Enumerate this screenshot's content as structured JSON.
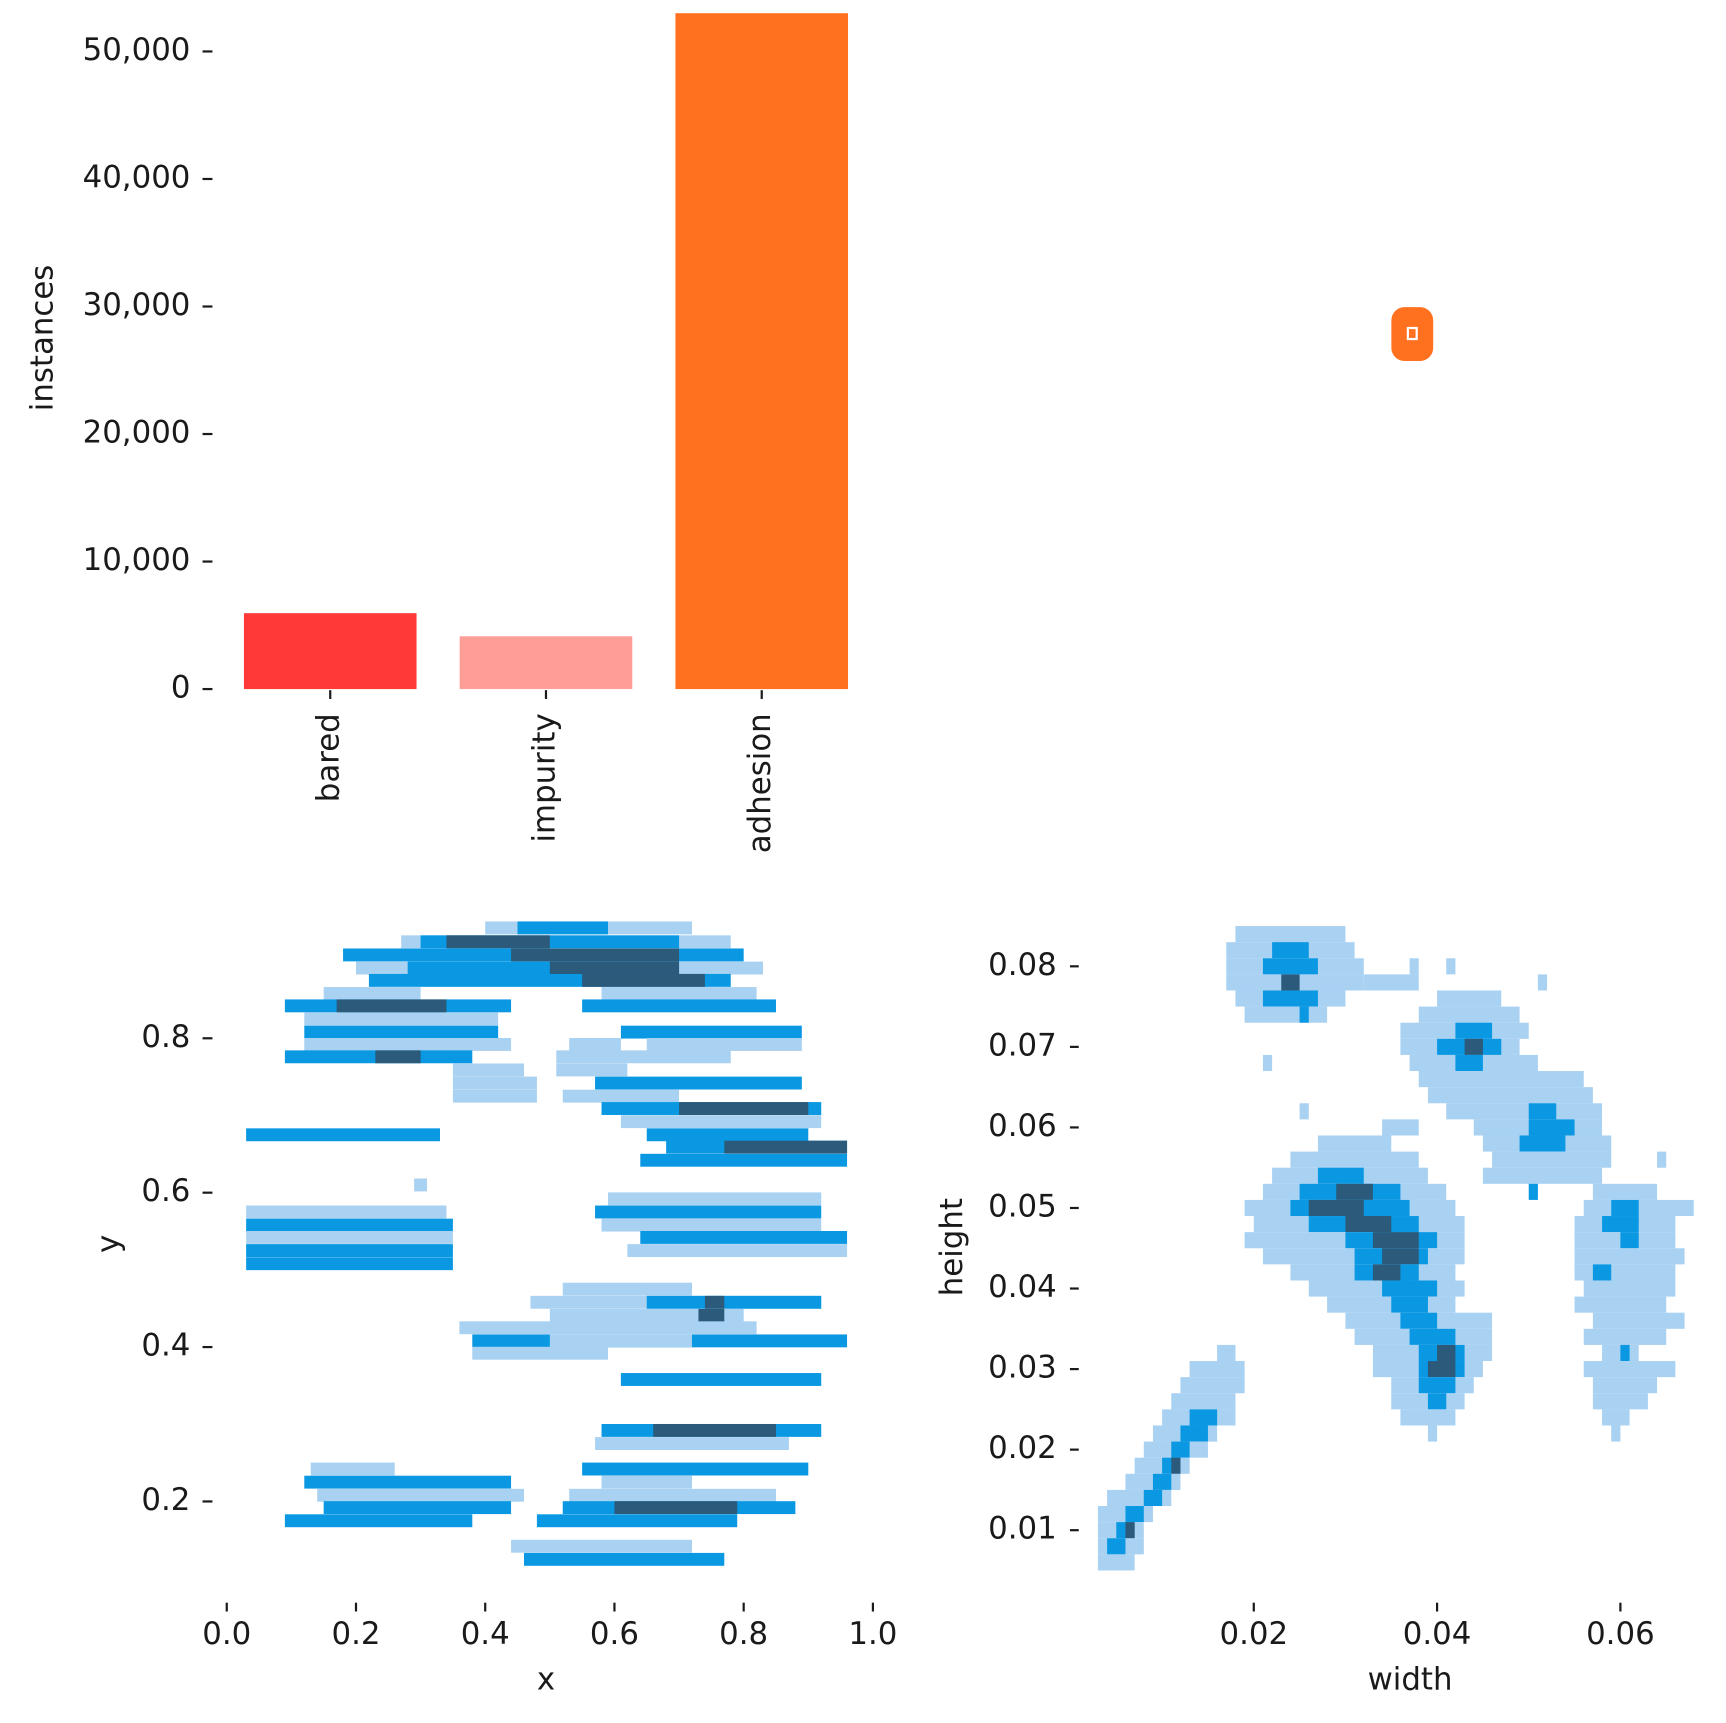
{
  "chart_data": [
    {
      "type": "bar",
      "ylabel": "instances",
      "categories": [
        "bared",
        "impurity",
        "adhesion"
      ],
      "values": [
        5950,
        4140,
        53000
      ],
      "colors": [
        "#ff3838",
        "#ff9d97",
        "#ff701f"
      ],
      "ylim": [
        0,
        53000
      ],
      "yticks": [
        0,
        {
          "value": 10000,
          "label": "10,000"
        },
        {
          "value": 20000,
          "label": "20,000"
        },
        {
          "value": 30000,
          "label": "30,000"
        },
        {
          "value": 40000,
          "label": "40,000"
        },
        {
          "value": 50000,
          "label": "50,000"
        }
      ]
    },
    {
      "type": "histogram2d",
      "xlabel": "x",
      "ylabel": "y",
      "xlim": [
        0,
        1
      ],
      "ylim": [
        0.07,
        1.0
      ],
      "xticks": [
        {
          "value": 0,
          "label": "0.0"
        },
        0.2,
        0.4,
        0.6,
        0.8,
        {
          "value": 1,
          "label": "1.0"
        }
      ],
      "yticks": [
        0.2,
        0.4,
        0.6,
        0.8
      ],
      "bin_height": 0.0167,
      "colors": [
        "#a8d1f2",
        "#0a98e3",
        "#2b5a7a"
      ],
      "cells": [
        [
          0.4,
          0.72,
          0.943,
          1
        ],
        [
          0.45,
          0.59,
          0.943,
          2
        ],
        [
          0.27,
          0.78,
          0.925,
          1
        ],
        [
          0.3,
          0.7,
          0.925,
          2
        ],
        [
          0.34,
          0.5,
          0.925,
          3
        ],
        [
          0.18,
          0.8,
          0.908,
          2
        ],
        [
          0.44,
          0.7,
          0.908,
          3
        ],
        [
          0.2,
          0.83,
          0.891,
          1
        ],
        [
          0.28,
          0.7,
          0.891,
          2
        ],
        [
          0.5,
          0.7,
          0.891,
          3
        ],
        [
          0.22,
          0.78,
          0.875,
          2
        ],
        [
          0.55,
          0.74,
          0.875,
          3
        ],
        [
          0.15,
          0.3,
          0.858,
          1
        ],
        [
          0.58,
          0.82,
          0.858,
          1
        ],
        [
          0.09,
          0.44,
          0.842,
          2
        ],
        [
          0.17,
          0.34,
          0.842,
          3
        ],
        [
          0.55,
          0.85,
          0.842,
          2
        ],
        [
          0.12,
          0.42,
          0.825,
          1
        ],
        [
          0.12,
          0.42,
          0.808,
          2
        ],
        [
          0.61,
          0.89,
          0.808,
          2
        ],
        [
          0.12,
          0.44,
          0.792,
          1
        ],
        [
          0.53,
          0.61,
          0.792,
          1
        ],
        [
          0.65,
          0.89,
          0.792,
          1
        ],
        [
          0.09,
          0.38,
          0.776,
          2
        ],
        [
          0.23,
          0.3,
          0.776,
          3
        ],
        [
          0.51,
          0.78,
          0.776,
          1
        ],
        [
          0.35,
          0.46,
          0.759,
          1
        ],
        [
          0.51,
          0.62,
          0.759,
          1
        ],
        [
          0.35,
          0.48,
          0.742,
          1
        ],
        [
          0.57,
          0.89,
          0.742,
          2
        ],
        [
          0.35,
          0.48,
          0.725,
          1
        ],
        [
          0.52,
          0.7,
          0.725,
          1
        ],
        [
          0.58,
          0.92,
          0.709,
          2
        ],
        [
          0.7,
          0.9,
          0.709,
          3
        ],
        [
          0.61,
          0.92,
          0.692,
          1
        ],
        [
          0.03,
          0.33,
          0.675,
          2
        ],
        [
          0.65,
          0.9,
          0.675,
          2
        ],
        [
          0.68,
          0.96,
          0.659,
          2
        ],
        [
          0.77,
          0.96,
          0.659,
          3
        ],
        [
          0.64,
          0.96,
          0.642,
          2
        ],
        [
          0.29,
          0.31,
          0.61,
          1
        ],
        [
          0.59,
          0.92,
          0.592,
          1
        ],
        [
          0.57,
          0.92,
          0.575,
          2
        ],
        [
          0.03,
          0.34,
          0.575,
          1
        ],
        [
          0.03,
          0.35,
          0.558,
          2
        ],
        [
          0.58,
          0.92,
          0.558,
          1
        ],
        [
          0.03,
          0.35,
          0.542,
          1
        ],
        [
          0.64,
          0.96,
          0.542,
          2
        ],
        [
          0.03,
          0.35,
          0.525,
          2
        ],
        [
          0.62,
          0.96,
          0.525,
          1
        ],
        [
          0.03,
          0.35,
          0.508,
          2
        ],
        [
          0.52,
          0.72,
          0.475,
          1
        ],
        [
          0.47,
          0.92,
          0.458,
          1
        ],
        [
          0.65,
          0.92,
          0.458,
          2
        ],
        [
          0.74,
          0.77,
          0.458,
          3
        ],
        [
          0.5,
          0.8,
          0.441,
          1
        ],
        [
          0.73,
          0.77,
          0.441,
          3
        ],
        [
          0.36,
          0.82,
          0.425,
          1
        ],
        [
          0.38,
          0.96,
          0.408,
          2
        ],
        [
          0.5,
          0.72,
          0.408,
          1
        ],
        [
          0.38,
          0.59,
          0.392,
          1
        ],
        [
          0.61,
          0.92,
          0.358,
          2
        ],
        [
          0.58,
          0.92,
          0.292,
          2
        ],
        [
          0.66,
          0.85,
          0.292,
          3
        ],
        [
          0.57,
          0.87,
          0.275,
          1
        ],
        [
          0.13,
          0.26,
          0.242,
          1
        ],
        [
          0.55,
          0.9,
          0.242,
          2
        ],
        [
          0.12,
          0.44,
          0.225,
          2
        ],
        [
          0.58,
          0.72,
          0.225,
          1
        ],
        [
          0.14,
          0.46,
          0.208,
          1
        ],
        [
          0.53,
          0.85,
          0.208,
          1
        ],
        [
          0.15,
          0.44,
          0.192,
          2
        ],
        [
          0.52,
          0.88,
          0.192,
          2
        ],
        [
          0.6,
          0.79,
          0.192,
          3
        ],
        [
          0.09,
          0.38,
          0.175,
          2
        ],
        [
          0.48,
          0.79,
          0.175,
          2
        ],
        [
          0.44,
          0.72,
          0.142,
          1
        ],
        [
          0.46,
          0.77,
          0.125,
          2
        ]
      ]
    },
    {
      "type": "histogram2d",
      "xlabel": "width",
      "ylabel": "height",
      "xlim": [
        0.001,
        0.069
      ],
      "ylim": [
        0.001,
        0.09
      ],
      "xticks": [
        0.02,
        0.04,
        0.06
      ],
      "yticks": [
        0.01,
        0.02,
        0.03,
        0.04,
        0.05,
        0.06,
        0.07,
        0.08
      ],
      "bin_height": 0.002,
      "colors": [
        "#a8d1f2",
        "#0a98e3",
        "#2b5a7a"
      ],
      "cells": [
        [
          0.018,
          0.03,
          0.084,
          1
        ],
        [
          0.017,
          0.031,
          0.082,
          1
        ],
        [
          0.022,
          0.026,
          0.082,
          2
        ],
        [
          0.017,
          0.032,
          0.08,
          1
        ],
        [
          0.021,
          0.027,
          0.08,
          2
        ],
        [
          0.037,
          0.038,
          0.08,
          1
        ],
        [
          0.041,
          0.042,
          0.08,
          1
        ],
        [
          0.017,
          0.032,
          0.078,
          1
        ],
        [
          0.023,
          0.025,
          0.078,
          3
        ],
        [
          0.032,
          0.038,
          0.078,
          1
        ],
        [
          0.051,
          0.052,
          0.078,
          1
        ],
        [
          0.018,
          0.03,
          0.076,
          1
        ],
        [
          0.021,
          0.027,
          0.076,
          2
        ],
        [
          0.04,
          0.047,
          0.076,
          1
        ],
        [
          0.019,
          0.028,
          0.074,
          1
        ],
        [
          0.025,
          0.026,
          0.074,
          2
        ],
        [
          0.038,
          0.049,
          0.074,
          1
        ],
        [
          0.036,
          0.05,
          0.072,
          1
        ],
        [
          0.042,
          0.046,
          0.072,
          2
        ],
        [
          0.036,
          0.049,
          0.07,
          1
        ],
        [
          0.04,
          0.047,
          0.07,
          2
        ],
        [
          0.043,
          0.045,
          0.07,
          3
        ],
        [
          0.037,
          0.051,
          0.068,
          1
        ],
        [
          0.042,
          0.045,
          0.068,
          2
        ],
        [
          0.021,
          0.022,
          0.068,
          1
        ],
        [
          0.038,
          0.056,
          0.066,
          1
        ],
        [
          0.039,
          0.057,
          0.064,
          1
        ],
        [
          0.041,
          0.058,
          0.062,
          1
        ],
        [
          0.05,
          0.053,
          0.062,
          2
        ],
        [
          0.025,
          0.026,
          0.062,
          1
        ],
        [
          0.034,
          0.038,
          0.06,
          1
        ],
        [
          0.044,
          0.058,
          0.06,
          1
        ],
        [
          0.05,
          0.055,
          0.06,
          2
        ],
        [
          0.027,
          0.035,
          0.058,
          1
        ],
        [
          0.045,
          0.059,
          0.058,
          1
        ],
        [
          0.049,
          0.054,
          0.058,
          2
        ],
        [
          0.024,
          0.038,
          0.056,
          1
        ],
        [
          0.046,
          0.059,
          0.056,
          1
        ],
        [
          0.064,
          0.065,
          0.056,
          1
        ],
        [
          0.022,
          0.039,
          0.054,
          1
        ],
        [
          0.027,
          0.032,
          0.054,
          2
        ],
        [
          0.045,
          0.058,
          0.054,
          1
        ],
        [
          0.021,
          0.041,
          0.052,
          1
        ],
        [
          0.025,
          0.036,
          0.052,
          2
        ],
        [
          0.029,
          0.033,
          0.052,
          3
        ],
        [
          0.05,
          0.051,
          0.052,
          2
        ],
        [
          0.057,
          0.064,
          0.052,
          1
        ],
        [
          0.019,
          0.042,
          0.05,
          1
        ],
        [
          0.024,
          0.037,
          0.05,
          2
        ],
        [
          0.026,
          0.032,
          0.05,
          3
        ],
        [
          0.056,
          0.068,
          0.05,
          1
        ],
        [
          0.059,
          0.062,
          0.05,
          2
        ],
        [
          0.02,
          0.043,
          0.048,
          1
        ],
        [
          0.026,
          0.038,
          0.048,
          2
        ],
        [
          0.03,
          0.035,
          0.048,
          3
        ],
        [
          0.055,
          0.066,
          0.048,
          1
        ],
        [
          0.058,
          0.062,
          0.048,
          2
        ],
        [
          0.019,
          0.043,
          0.046,
          1
        ],
        [
          0.03,
          0.04,
          0.046,
          2
        ],
        [
          0.033,
          0.038,
          0.046,
          3
        ],
        [
          0.055,
          0.066,
          0.046,
          1
        ],
        [
          0.06,
          0.062,
          0.046,
          2
        ],
        [
          0.021,
          0.043,
          0.044,
          1
        ],
        [
          0.031,
          0.039,
          0.044,
          2
        ],
        [
          0.034,
          0.038,
          0.044,
          3
        ],
        [
          0.055,
          0.067,
          0.044,
          1
        ],
        [
          0.024,
          0.042,
          0.042,
          1
        ],
        [
          0.031,
          0.038,
          0.042,
          2
        ],
        [
          0.033,
          0.036,
          0.042,
          3
        ],
        [
          0.055,
          0.066,
          0.042,
          1
        ],
        [
          0.057,
          0.059,
          0.042,
          2
        ],
        [
          0.026,
          0.043,
          0.04,
          1
        ],
        [
          0.034,
          0.04,
          0.04,
          2
        ],
        [
          0.056,
          0.066,
          0.04,
          1
        ],
        [
          0.028,
          0.042,
          0.038,
          1
        ],
        [
          0.035,
          0.039,
          0.038,
          2
        ],
        [
          0.055,
          0.065,
          0.038,
          1
        ],
        [
          0.03,
          0.046,
          0.036,
          1
        ],
        [
          0.036,
          0.04,
          0.036,
          2
        ],
        [
          0.057,
          0.067,
          0.036,
          1
        ],
        [
          0.031,
          0.046,
          0.034,
          1
        ],
        [
          0.037,
          0.042,
          0.034,
          2
        ],
        [
          0.056,
          0.065,
          0.034,
          1
        ],
        [
          0.016,
          0.018,
          0.032,
          1
        ],
        [
          0.033,
          0.046,
          0.032,
          1
        ],
        [
          0.038,
          0.043,
          0.032,
          2
        ],
        [
          0.04,
          0.042,
          0.032,
          3
        ],
        [
          0.058,
          0.062,
          0.032,
          1
        ],
        [
          0.06,
          0.061,
          0.032,
          2
        ],
        [
          0.013,
          0.019,
          0.03,
          1
        ],
        [
          0.033,
          0.045,
          0.03,
          1
        ],
        [
          0.038,
          0.043,
          0.03,
          2
        ],
        [
          0.039,
          0.042,
          0.03,
          3
        ],
        [
          0.056,
          0.066,
          0.03,
          1
        ],
        [
          0.012,
          0.019,
          0.028,
          1
        ],
        [
          0.035,
          0.044,
          0.028,
          1
        ],
        [
          0.038,
          0.042,
          0.028,
          2
        ],
        [
          0.057,
          0.064,
          0.028,
          1
        ],
        [
          0.011,
          0.018,
          0.026,
          1
        ],
        [
          0.035,
          0.043,
          0.026,
          1
        ],
        [
          0.039,
          0.041,
          0.026,
          2
        ],
        [
          0.057,
          0.063,
          0.026,
          1
        ],
        [
          0.01,
          0.018,
          0.024,
          1
        ],
        [
          0.013,
          0.016,
          0.024,
          2
        ],
        [
          0.036,
          0.042,
          0.024,
          1
        ],
        [
          0.058,
          0.061,
          0.024,
          1
        ],
        [
          0.009,
          0.016,
          0.022,
          1
        ],
        [
          0.012,
          0.015,
          0.022,
          2
        ],
        [
          0.039,
          0.04,
          0.022,
          1
        ],
        [
          0.059,
          0.06,
          0.022,
          1
        ],
        [
          0.008,
          0.015,
          0.02,
          1
        ],
        [
          0.011,
          0.013,
          0.02,
          2
        ],
        [
          0.007,
          0.013,
          0.018,
          1
        ],
        [
          0.01,
          0.012,
          0.018,
          2
        ],
        [
          0.011,
          0.012,
          0.018,
          3
        ],
        [
          0.006,
          0.012,
          0.016,
          1
        ],
        [
          0.009,
          0.011,
          0.016,
          2
        ],
        [
          0.004,
          0.011,
          0.014,
          1
        ],
        [
          0.008,
          0.01,
          0.014,
          2
        ],
        [
          0.003,
          0.009,
          0.012,
          1
        ],
        [
          0.006,
          0.008,
          0.012,
          2
        ],
        [
          0.003,
          0.008,
          0.01,
          1
        ],
        [
          0.005,
          0.007,
          0.01,
          2
        ],
        [
          0.006,
          0.007,
          0.01,
          3
        ],
        [
          0.003,
          0.008,
          0.008,
          1
        ],
        [
          0.004,
          0.006,
          0.008,
          2
        ],
        [
          0.003,
          0.007,
          0.006,
          1
        ]
      ]
    }
  ]
}
